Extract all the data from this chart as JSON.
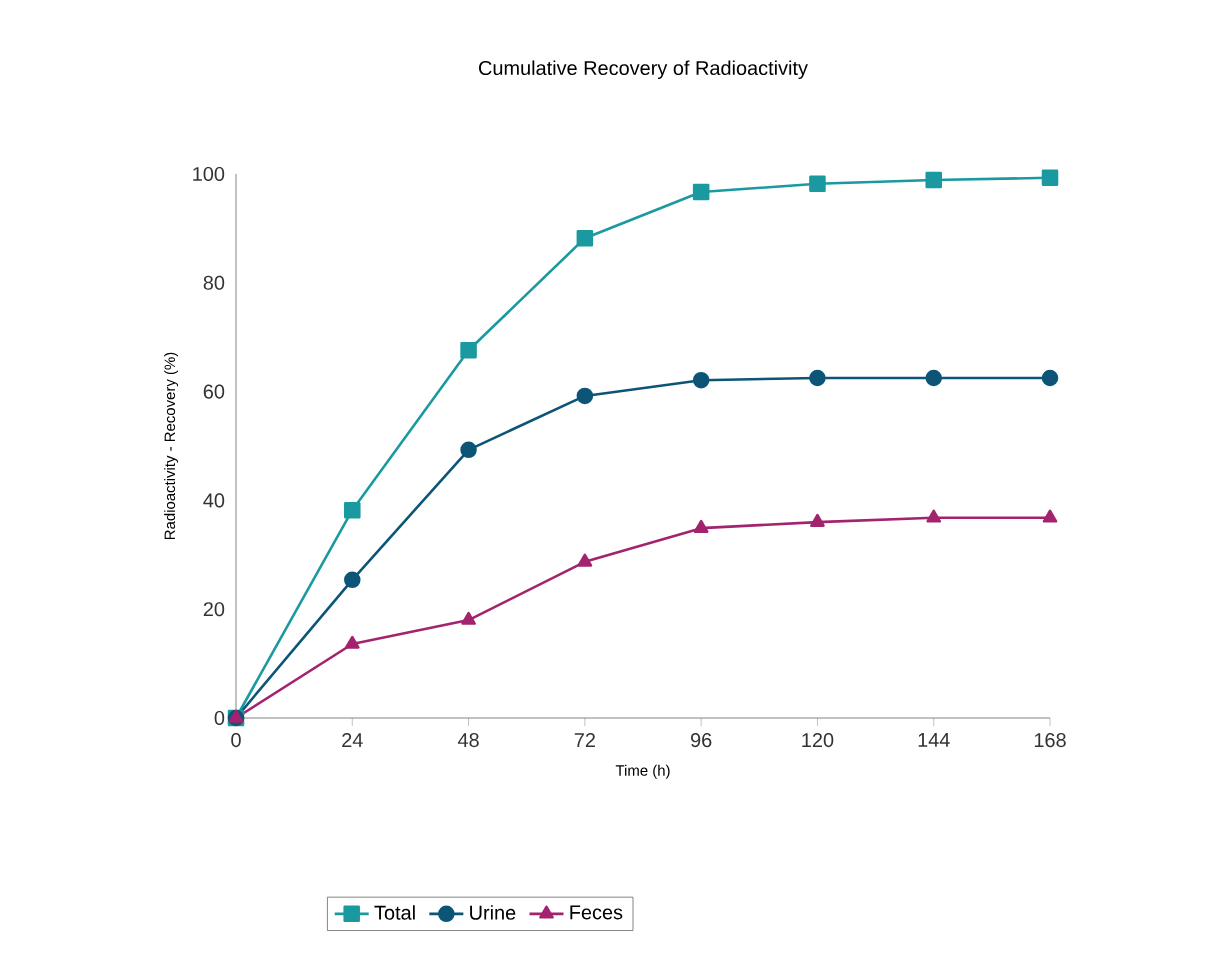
{
  "chart_data": {
    "type": "line",
    "title": "Cumulative Recovery of Radioactivity",
    "xlabel": "Time (h)",
    "ylabel": "Radioactivity - Recovery (%)",
    "x": [
      0,
      24,
      48,
      72,
      96,
      120,
      144,
      168
    ],
    "series": [
      {
        "name": "Total",
        "color": "#1a9aa0",
        "marker": "square",
        "values": [
          0,
          38.2,
          67.6,
          88.2,
          96.7,
          98.2,
          98.9,
          99.3
        ]
      },
      {
        "name": "Urine",
        "color": "#0d5577",
        "marker": "circle",
        "values": [
          0,
          25.4,
          49.3,
          59.2,
          62.1,
          62.5,
          62.5,
          62.5
        ]
      },
      {
        "name": "Feces",
        "color": "#a3236f",
        "marker": "triangle",
        "values": [
          0,
          13.6,
          18.0,
          28.7,
          34.9,
          36.0,
          36.8,
          36.8
        ]
      }
    ],
    "xlim": [
      0,
      168
    ],
    "ylim": [
      0,
      100
    ],
    "xticks": [
      0,
      24,
      48,
      72,
      96,
      120,
      144,
      168
    ],
    "yticks": [
      0,
      20,
      40,
      60,
      80,
      100
    ],
    "grid": false,
    "legend": "bottom",
    "line_style": "solid"
  }
}
